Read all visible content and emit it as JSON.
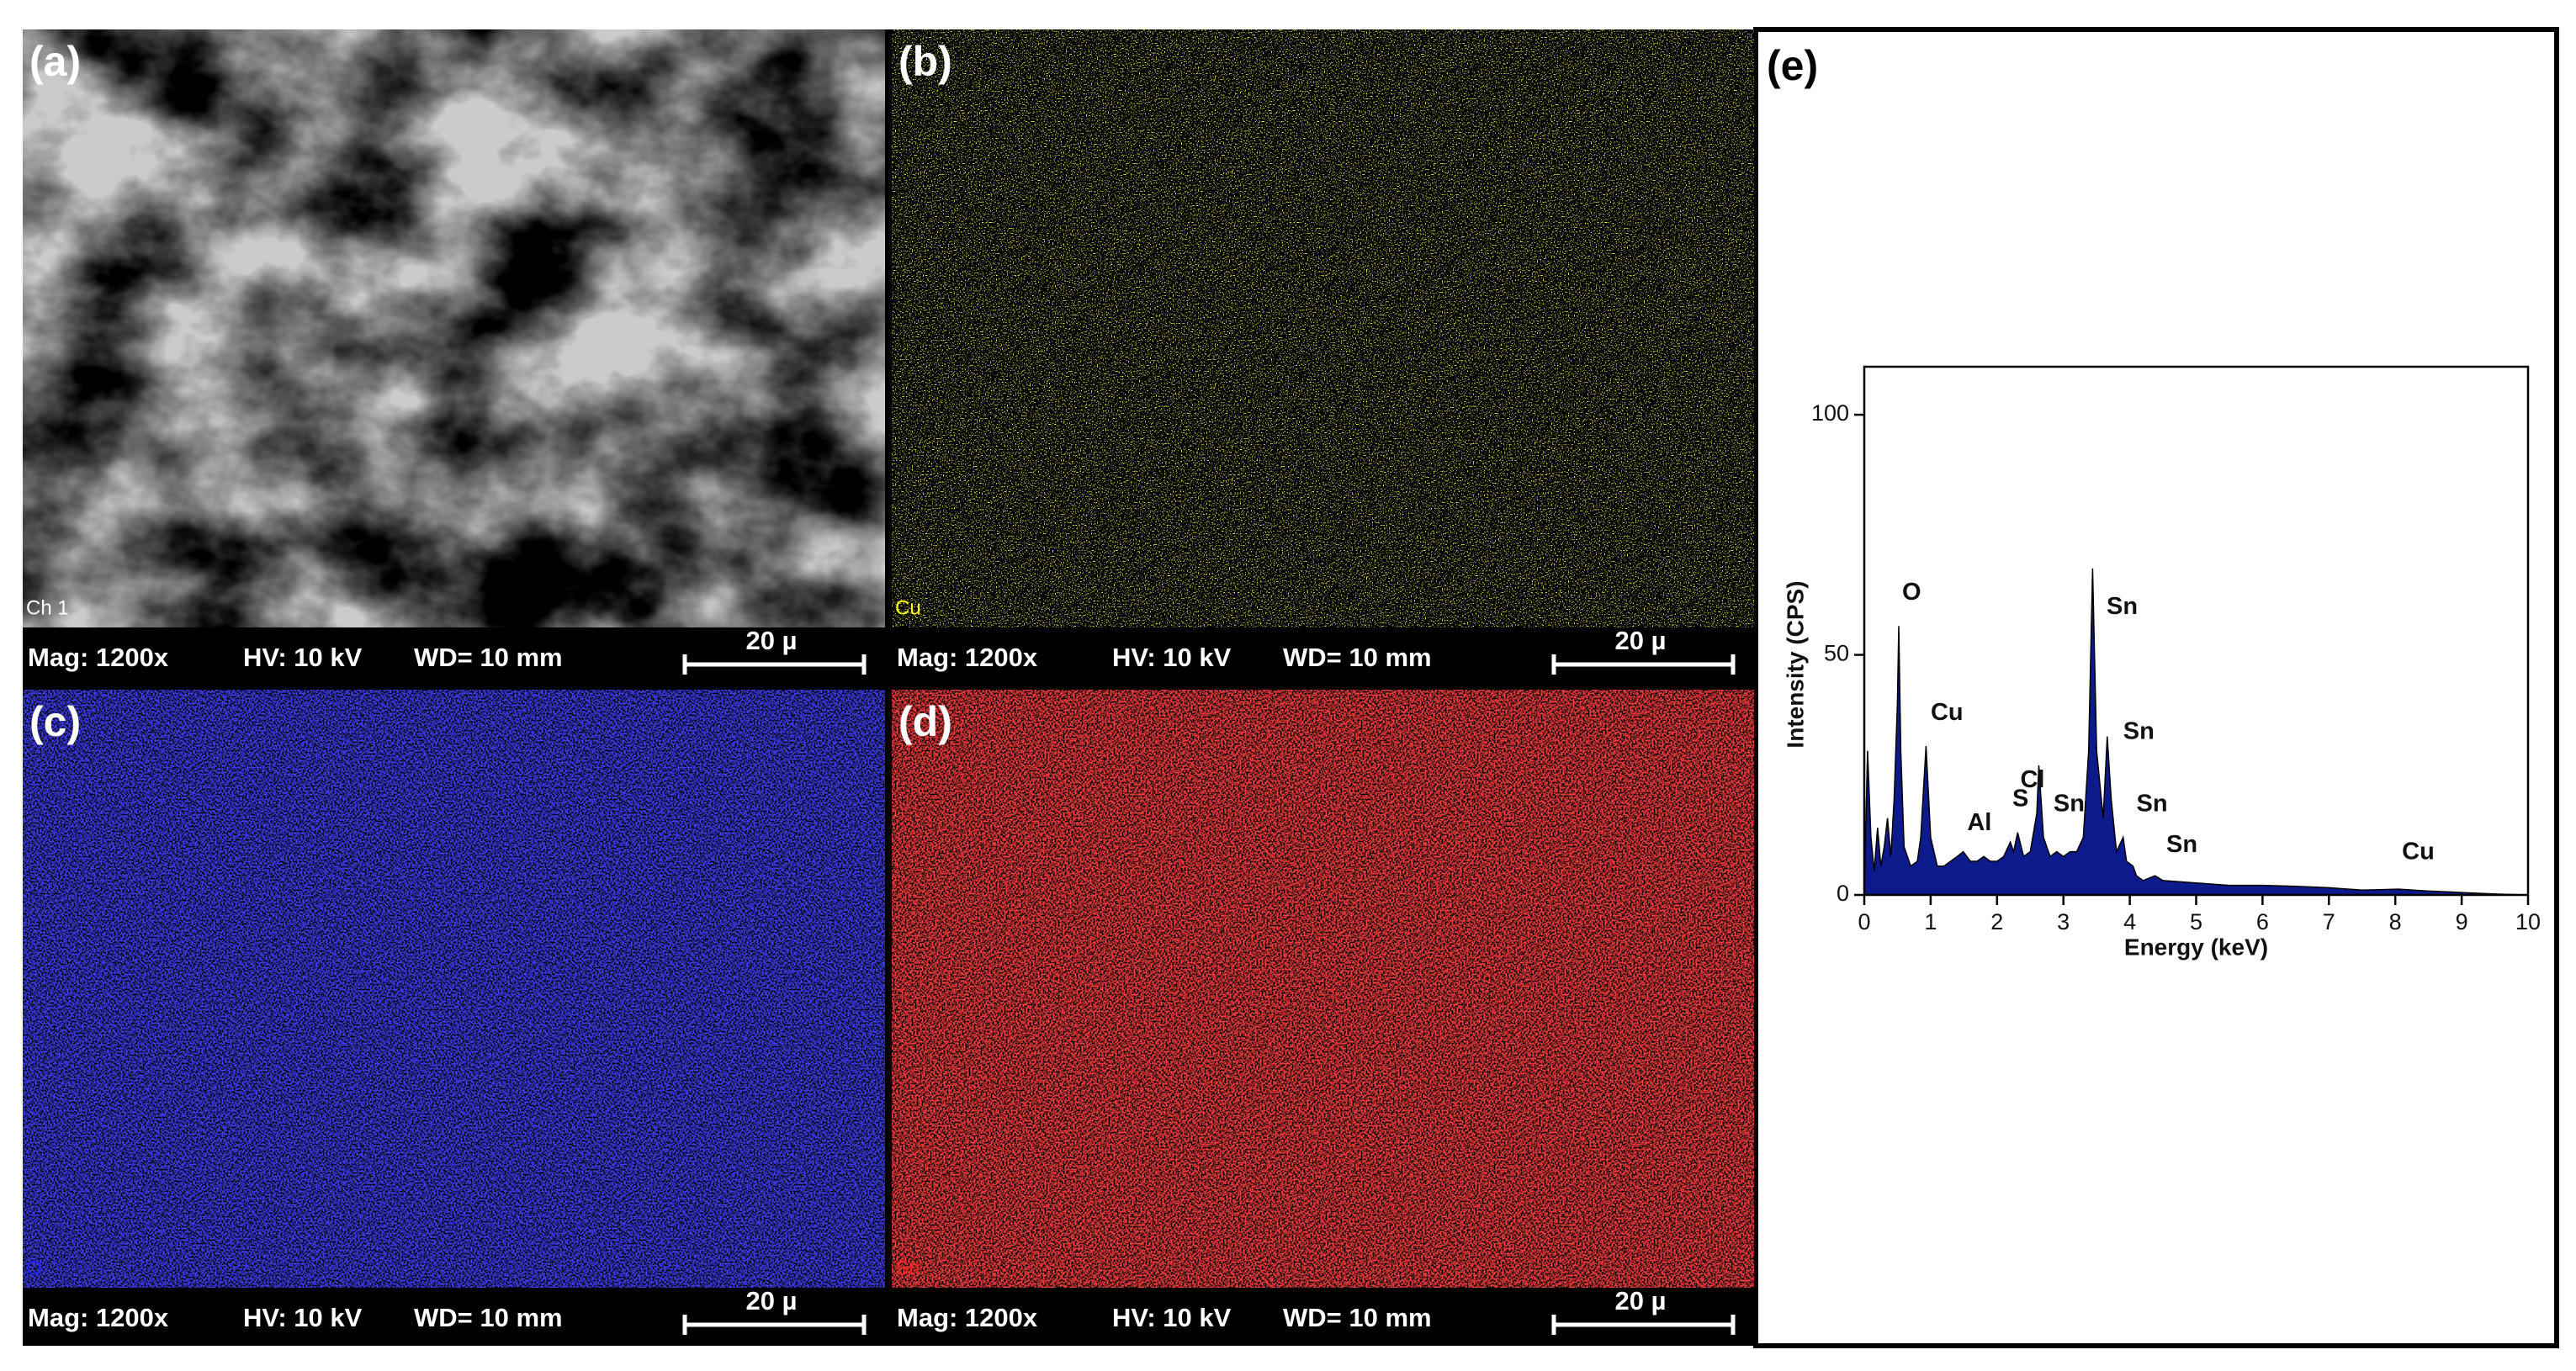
{
  "panels": [
    {
      "label": "(a)",
      "channel": "Ch 1",
      "mag": "Mag: 1200x",
      "hv": "HV: 10 kV",
      "wd": "WD= 10 mm",
      "scale": "20 µ"
    },
    {
      "label": "(b)",
      "channel": "Cu",
      "mag": "Mag: 1200x",
      "hv": "HV: 10 kV",
      "wd": "WD= 10 mm",
      "scale": "20 µ"
    },
    {
      "label": "(c)",
      "channel": "O",
      "mag": "Mag: 1200x",
      "hv": "HV: 10 kV",
      "wd": "WD= 10 mm",
      "scale": "20 µ"
    },
    {
      "label": "(d)",
      "channel": "Sn",
      "mag": "Mag: 1200x",
      "hv": "HV: 10 kV",
      "wd": "WD= 10 mm",
      "scale": "20 µ"
    }
  ],
  "chart_data": {
    "type": "area",
    "label": "(e)",
    "x_label": "Energy (keV)",
    "y_label": "Intensity (CPS)",
    "color": "#0c1a8c",
    "x": [
      0,
      0.05,
      0.1,
      0.15,
      0.2,
      0.25,
      0.3,
      0.35,
      0.4,
      0.45,
      0.5,
      0.52,
      0.55,
      0.6,
      0.7,
      0.8,
      0.85,
      0.93,
      1.0,
      1.1,
      1.2,
      1.3,
      1.4,
      1.49,
      1.6,
      1.7,
      1.8,
      1.9,
      2.0,
      2.1,
      2.2,
      2.25,
      2.31,
      2.4,
      2.5,
      2.6,
      2.63,
      2.7,
      2.8,
      2.9,
      3.0,
      3.1,
      3.2,
      3.3,
      3.38,
      3.44,
      3.5,
      3.6,
      3.66,
      3.72,
      3.8,
      3.9,
      3.95,
      4.05,
      4.1,
      4.2,
      4.38,
      4.5,
      5,
      5.5,
      6,
      6.5,
      7,
      7.5,
      8.05,
      8.5,
      9,
      9.5,
      10
    ],
    "y": [
      0,
      30,
      12,
      5,
      14,
      6,
      10,
      16,
      8,
      20,
      40,
      56,
      30,
      10,
      6,
      7,
      12,
      31,
      12,
      6,
      6,
      7,
      8,
      9,
      7,
      7,
      8,
      7,
      7,
      8,
      11,
      9,
      13,
      8,
      9,
      17,
      27,
      12,
      8,
      9,
      8,
      9,
      9,
      12,
      30,
      68,
      30,
      16,
      33,
      20,
      9,
      12,
      7,
      6,
      4,
      3,
      4,
      3,
      2.5,
      2,
      2,
      1.8,
      1.5,
      1,
      1.2,
      0.8,
      0.5,
      0.2,
      0
    ],
    "xlim": [
      0,
      10
    ],
    "ylim": [
      0,
      110
    ],
    "xticks": [
      0,
      1,
      2,
      3,
      4,
      5,
      6,
      7,
      8,
      9,
      10
    ],
    "yticks": [
      0,
      50,
      100
    ],
    "annotations": [
      {
        "text": "O",
        "x": 0.52,
        "y": 60
      },
      {
        "text": "Cu",
        "x": 0.95,
        "y": 35
      },
      {
        "text": "Al",
        "x": 1.5,
        "y": 12
      },
      {
        "text": "S",
        "x": 2.18,
        "y": 17
      },
      {
        "text": "Cl",
        "x": 2.3,
        "y": 21
      },
      {
        "text": "Sn",
        "x": 2.8,
        "y": 16
      },
      {
        "text": "Sn",
        "x": 3.6,
        "y": 57
      },
      {
        "text": "Sn",
        "x": 3.85,
        "y": 31
      },
      {
        "text": "Sn",
        "x": 4.05,
        "y": 16
      },
      {
        "text": "Sn",
        "x": 4.5,
        "y": 7.5
      },
      {
        "text": "Cu",
        "x": 8.05,
        "y": 6
      }
    ]
  }
}
